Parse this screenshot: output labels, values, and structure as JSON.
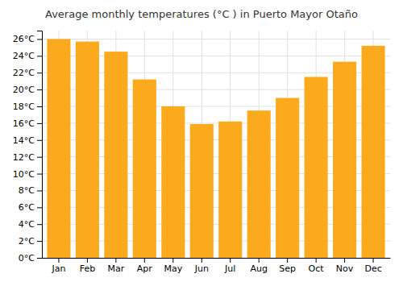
{
  "chart_data": {
    "type": "bar",
    "title": "Average monthly temperatures (°C ) in Puerto Mayor Otaño",
    "categories": [
      "Jan",
      "Feb",
      "Mar",
      "Apr",
      "May",
      "Jun",
      "Jul",
      "Aug",
      "Sep",
      "Oct",
      "Nov",
      "Dec"
    ],
    "values": [
      26.0,
      25.7,
      24.5,
      21.2,
      18.0,
      15.9,
      16.2,
      17.5,
      19.0,
      21.5,
      23.3,
      25.2
    ],
    "color": "#FBAA1E",
    "ylim": [
      0,
      27
    ],
    "yticks": [
      {
        "value": 0,
        "label": "0°C"
      },
      {
        "value": 2,
        "label": "2°C"
      },
      {
        "value": 4,
        "label": "4°C"
      },
      {
        "value": 6,
        "label": "6°C"
      },
      {
        "value": 8,
        "label": "8°C"
      },
      {
        "value": 10,
        "label": "10°C"
      },
      {
        "value": 12,
        "label": "12°C"
      },
      {
        "value": 14,
        "label": "14°C"
      },
      {
        "value": 16,
        "label": "16°C"
      },
      {
        "value": 18,
        "label": "18°C"
      },
      {
        "value": 20,
        "label": "20°C"
      },
      {
        "value": 22,
        "label": "22°C"
      },
      {
        "value": 24,
        "label": "24°C"
      },
      {
        "value": 26,
        "label": "26°C"
      }
    ],
    "grid": true
  }
}
